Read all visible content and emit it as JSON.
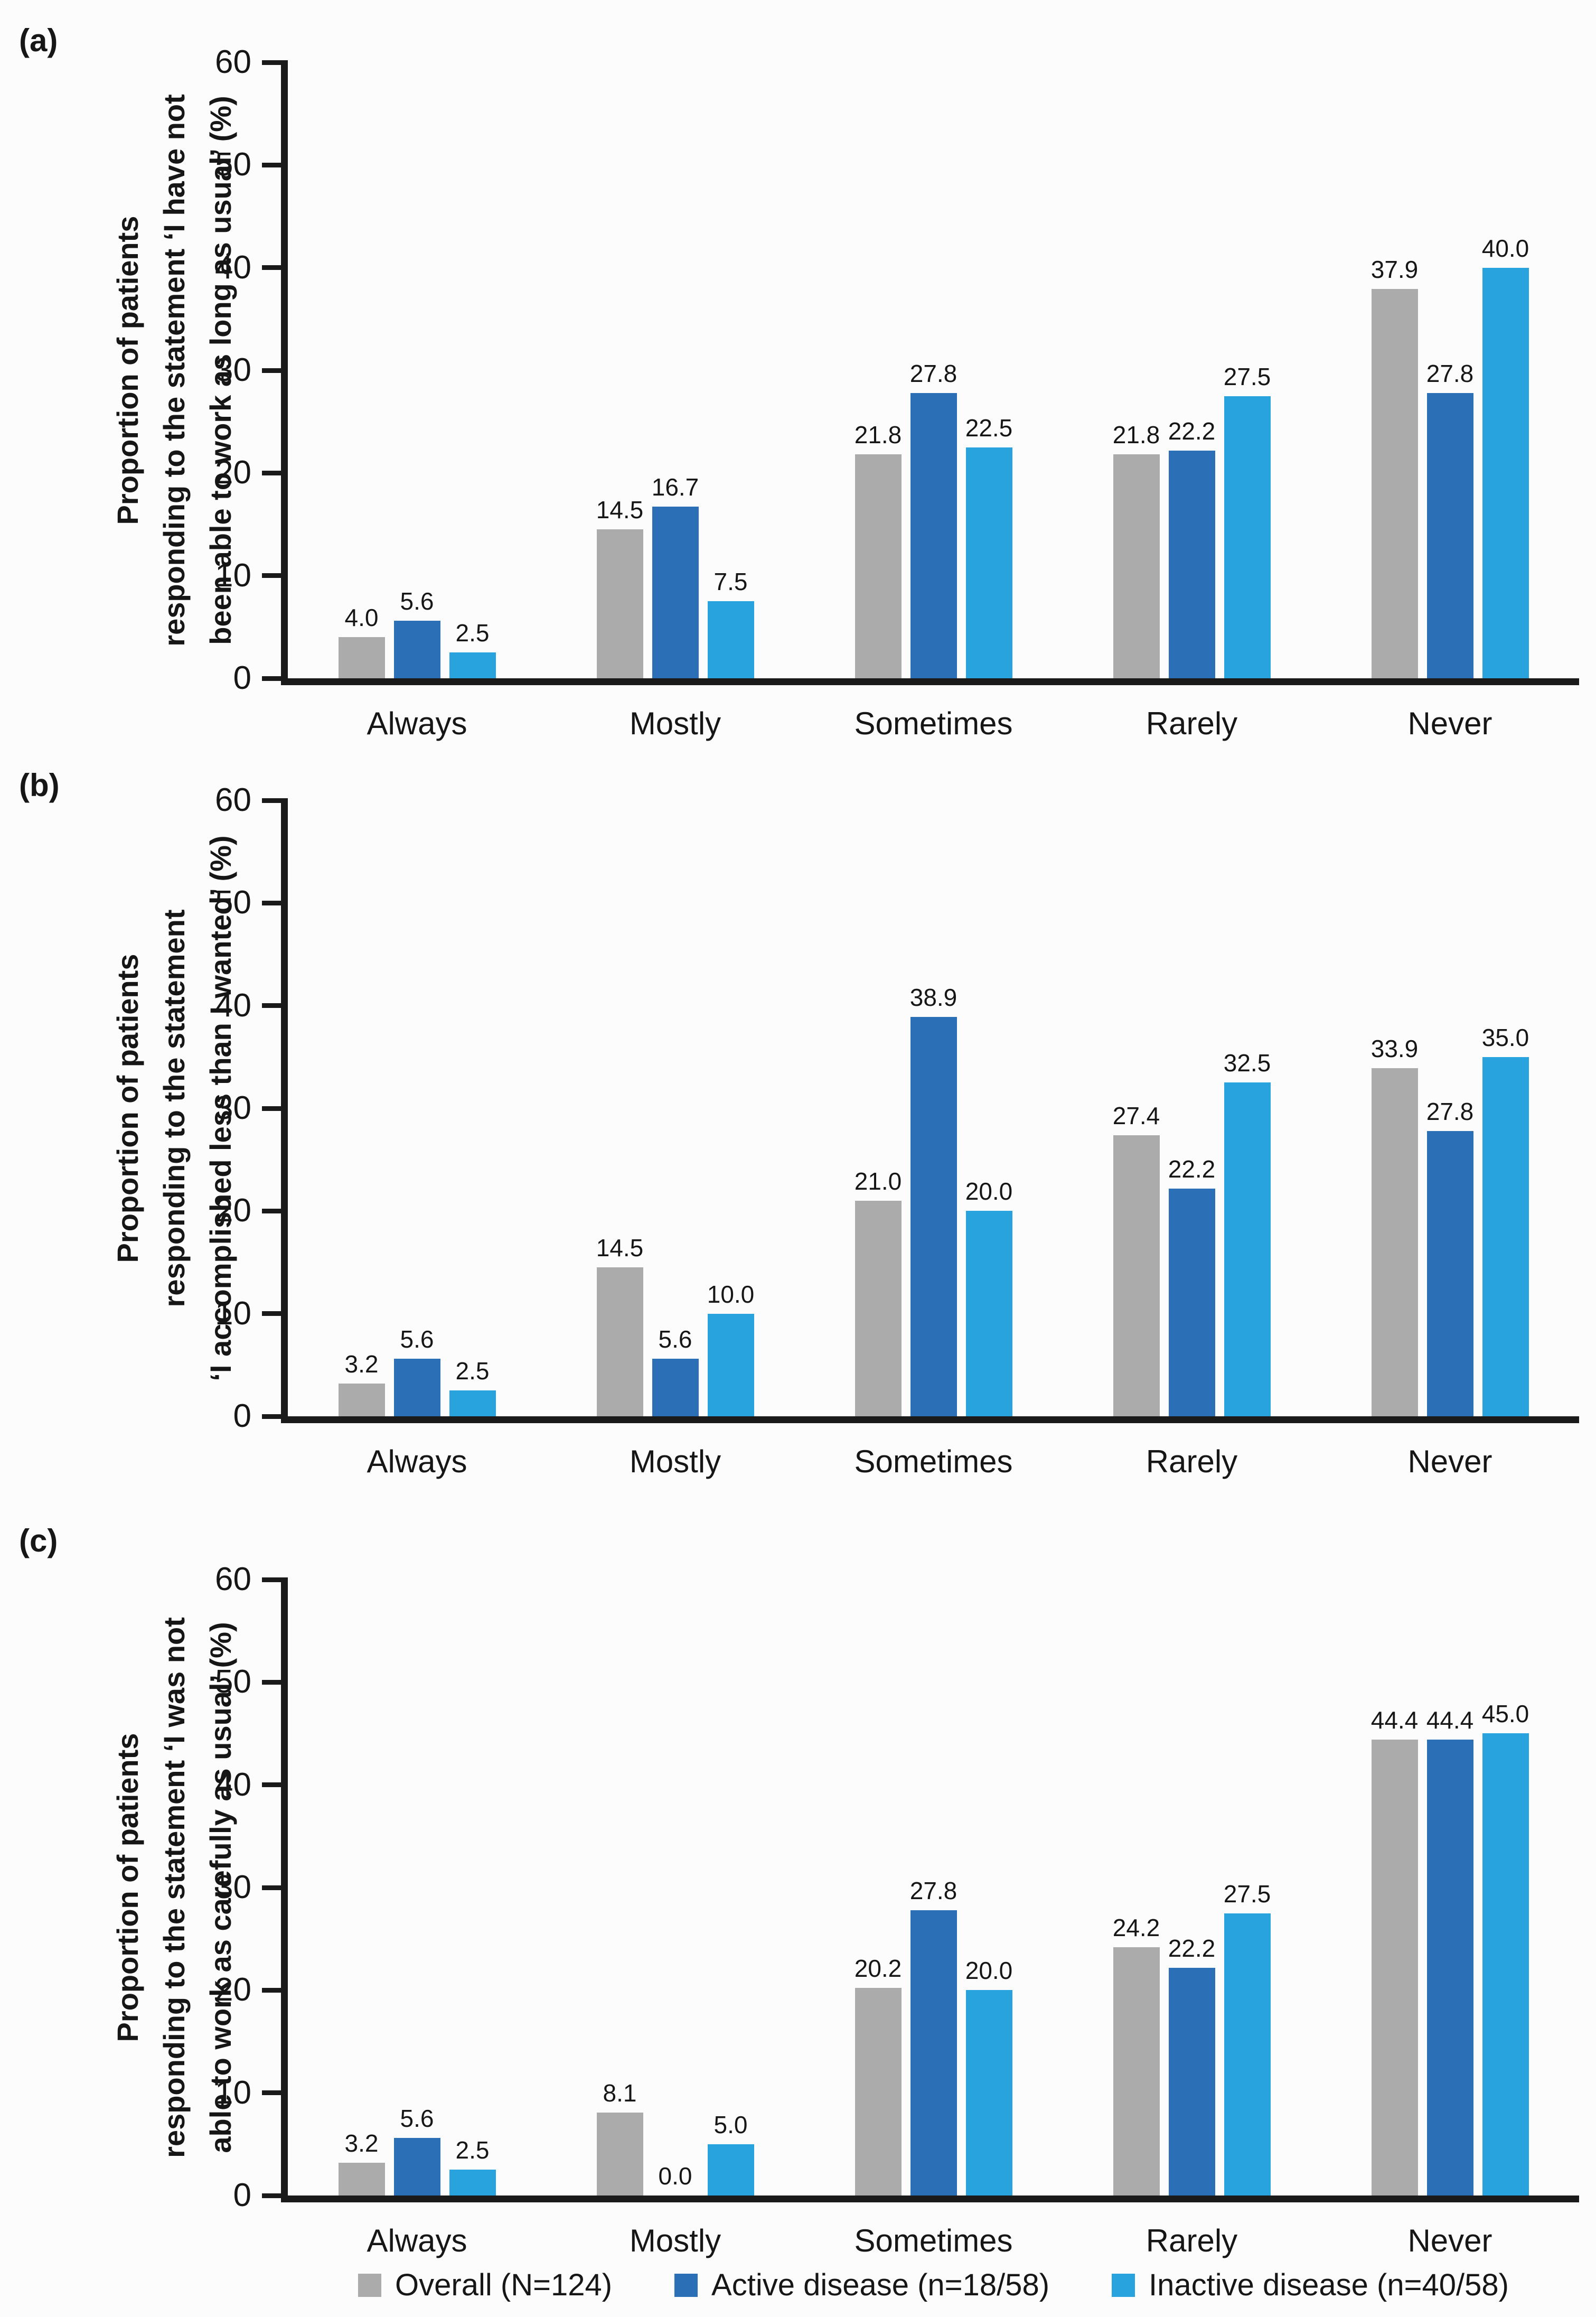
{
  "figure": {
    "background": "#fcfcfc",
    "text_color": "#161616",
    "axis_color": "#1a1a1a"
  },
  "legend": {
    "position": "bottom",
    "items": [
      {
        "key": "overall",
        "label": "Overall (N=124)",
        "color": "#ababab"
      },
      {
        "key": "active",
        "label": "Active disease (n=18/58)",
        "color": "#2b6fb7"
      },
      {
        "key": "inactive",
        "label": "Inactive disease (n=40/58)",
        "color": "#29a3de"
      }
    ]
  },
  "chart_data": [
    {
      "type": "bar",
      "panel_label": "(a)",
      "ylabel_lines": [
        "Proportion of patients",
        "responding to the statement ‘I have not",
        "been able to work as long as usual’ (%)"
      ],
      "xlabel": "",
      "categories": [
        "Always",
        "Mostly",
        "Sometimes",
        "Rarely",
        "Never"
      ],
      "series": [
        {
          "name": "Overall (N=124)",
          "color": "#ababab",
          "values": [
            4.0,
            14.5,
            21.8,
            21.8,
            37.9
          ]
        },
        {
          "name": "Active disease (n=18/58)",
          "color": "#2b6fb7",
          "values": [
            5.6,
            16.7,
            27.8,
            22.2,
            27.8
          ]
        },
        {
          "name": "Inactive disease (n=40/58)",
          "color": "#29a3de",
          "values": [
            2.5,
            7.5,
            22.5,
            27.5,
            40.0
          ]
        }
      ],
      "ylim": [
        0,
        60
      ],
      "yticks": [
        0,
        10,
        20,
        30,
        40,
        50,
        60
      ],
      "grid": false,
      "value_labels": true,
      "value_label_format": "one_decimal"
    },
    {
      "type": "bar",
      "panel_label": "(b)",
      "ylabel_lines": [
        "Proportion of patients",
        "responding to the statement",
        "‘I accomplished less than I wanted’ (%)"
      ],
      "xlabel": "",
      "categories": [
        "Always",
        "Mostly",
        "Sometimes",
        "Rarely",
        "Never"
      ],
      "series": [
        {
          "name": "Overall (N=124)",
          "color": "#ababab",
          "values": [
            3.2,
            14.5,
            21.0,
            27.4,
            33.9
          ]
        },
        {
          "name": "Active disease (n=18/58)",
          "color": "#2b6fb7",
          "values": [
            5.6,
            5.6,
            38.9,
            22.2,
            27.8
          ]
        },
        {
          "name": "Inactive disease (n=40/58)",
          "color": "#29a3de",
          "values": [
            2.5,
            10.0,
            20.0,
            32.5,
            35.0
          ]
        }
      ],
      "ylim": [
        0,
        60
      ],
      "yticks": [
        0,
        10,
        20,
        30,
        40,
        50,
        60
      ],
      "grid": false,
      "value_labels": true,
      "value_label_format": "one_decimal"
    },
    {
      "type": "bar",
      "panel_label": "(c)",
      "ylabel_lines": [
        "Proportion of patients",
        "responding to the statement ‘I was not",
        "able to work as carefully as usual’ (%)"
      ],
      "xlabel": "",
      "categories": [
        "Always",
        "Mostly",
        "Sometimes",
        "Rarely",
        "Never"
      ],
      "series": [
        {
          "name": "Overall (N=124)",
          "color": "#ababab",
          "values": [
            3.2,
            8.1,
            20.2,
            24.2,
            44.4
          ]
        },
        {
          "name": "Active disease (n=18/58)",
          "color": "#2b6fb7",
          "values": [
            5.6,
            0.0,
            27.8,
            22.2,
            44.4
          ]
        },
        {
          "name": "Inactive disease (n=40/58)",
          "color": "#29a3de",
          "values": [
            2.5,
            5.0,
            20.0,
            27.5,
            45.0
          ]
        }
      ],
      "ylim": [
        0,
        60
      ],
      "yticks": [
        0,
        10,
        20,
        30,
        40,
        50,
        60
      ],
      "grid": false,
      "value_labels": true,
      "value_label_format": "one_decimal"
    }
  ]
}
